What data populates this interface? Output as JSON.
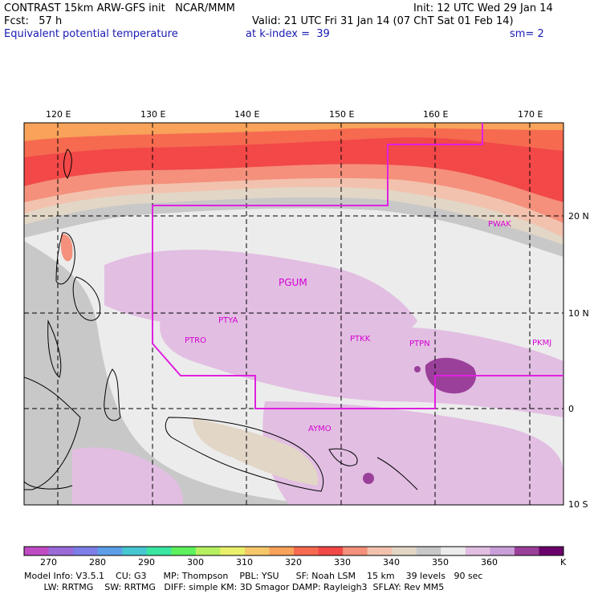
{
  "header": {
    "line1_left": "CONTRAST 15km ARW-GFS init   NCAR/MMM",
    "line1_right": "Init: 12 UTC Wed 29 Jan 14",
    "line2_left": "Fcst:   57 h",
    "line2_right": "Valid: 21 UTC Fri 31 Jan 14 (07 ChT Sat 01 Feb 14)",
    "line3_left": "Equivalent potential temperature",
    "line3_mid": "at k-index =  39",
    "line3_right": "sm= 2"
  },
  "map": {
    "lon_labels": [
      "120 E",
      "130 E",
      "140 E",
      "150 E",
      "160 E",
      "170 E"
    ],
    "lat_labels": [
      "20 N",
      "10 N",
      "0",
      "10 S"
    ],
    "stations": [
      "PGUM",
      "PTYA",
      "PTRO",
      "PTKK",
      "PTPN",
      "PKMJ",
      "PWAK",
      "AYMO"
    ]
  },
  "colorbar": {
    "colors": [
      "#c04cc4",
      "#9a6ad8",
      "#7e7ee8",
      "#5c9ee8",
      "#46c6d2",
      "#3ae6a2",
      "#5ef05e",
      "#b6f060",
      "#eaf06a",
      "#f6c86a",
      "#f8a25a",
      "#f66a50",
      "#f24848",
      "#f4907c",
      "#f2c2ae",
      "#e2d6c6",
      "#c8c8c8",
      "#ececec",
      "#e2bee2",
      "#ca9ed8",
      "#9a409a",
      "#6a006a"
    ],
    "labels": [
      "270",
      "280",
      "290",
      "300",
      "310",
      "320",
      "330",
      "340",
      "350",
      "360"
    ],
    "unit": "K"
  },
  "model_info": {
    "line1": "Model Info: V3.5.1    CU: G3      MP: Thompson    PBL: YSU      SF: Noah LSM    15 km    39 levels   90 sec",
    "line2": "       LW: RRTMG    SW: RRTMG   DIFF: simple KM: 3D Smagor DAMP: Rayleigh3  SFLAY: Rev MM5"
  }
}
